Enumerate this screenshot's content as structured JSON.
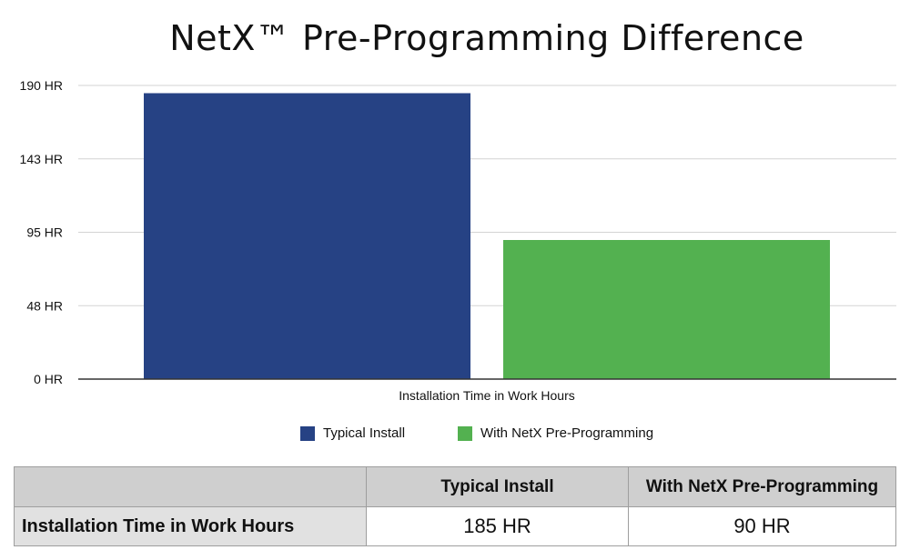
{
  "chart_data": {
    "type": "bar",
    "title": "NetX™ Pre-Programming Difference",
    "xlabel": "Installation Time in Work Hours",
    "ylabel": "",
    "categories": [
      "Installation Time in Work Hours"
    ],
    "series": [
      {
        "name": "Typical Install",
        "values": [
          185
        ],
        "color": "#264284"
      },
      {
        "name": "With NetX Pre-Programming",
        "values": [
          90
        ],
        "color": "#53b150"
      }
    ],
    "ylim": [
      0,
      190
    ],
    "yticks": [
      {
        "value": 0,
        "label": "0 HR"
      },
      {
        "value": 47.5,
        "label": "48 HR"
      },
      {
        "value": 95,
        "label": "95 HR"
      },
      {
        "value": 142.5,
        "label": "143 HR"
      },
      {
        "value": 190,
        "label": "190 HR"
      }
    ],
    "grid": true,
    "legend_position": "bottom"
  },
  "table": {
    "headers": [
      "",
      "Typical Install",
      "With NetX Pre-Programming"
    ],
    "row_label": "Installation Time in Work Hours",
    "values": [
      "185 HR",
      "90 HR"
    ]
  }
}
